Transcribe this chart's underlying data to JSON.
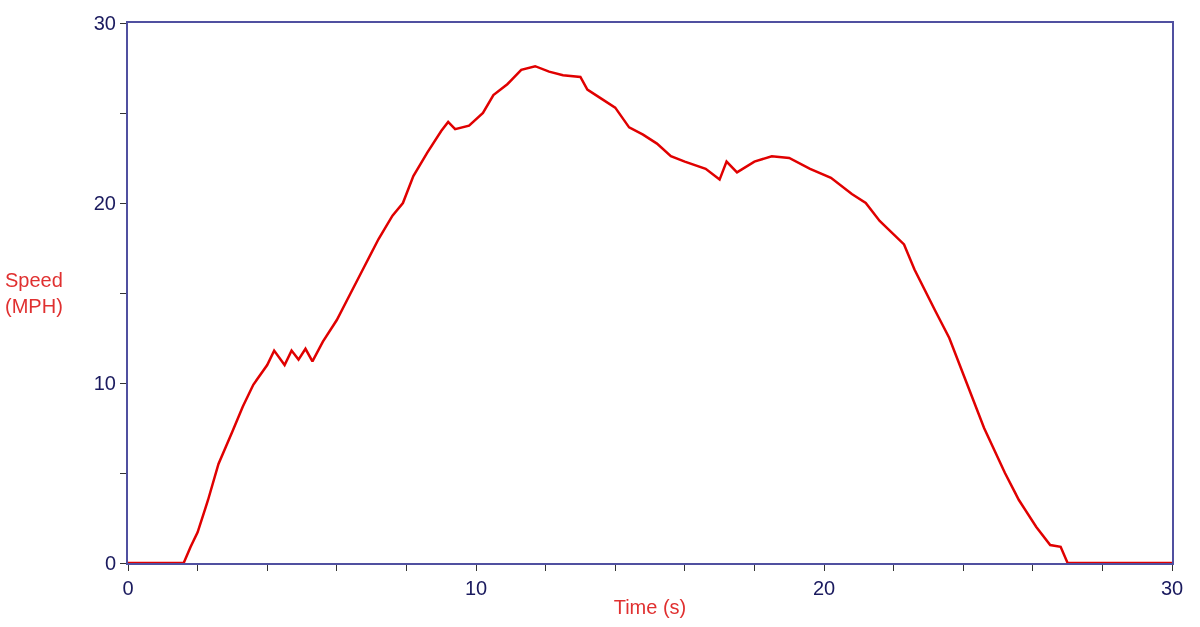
{
  "chart_data": {
    "type": "line",
    "xlabel": "Time (s)",
    "ylabel": "Speed\n(MPH)",
    "x": [
      0,
      1.6,
      1.8,
      2.0,
      2.3,
      2.6,
      3.0,
      3.3,
      3.6,
      4.0,
      4.2,
      4.5,
      4.7,
      4.9,
      5.1,
      5.3,
      5.6,
      6.0,
      6.4,
      6.8,
      7.2,
      7.6,
      7.9,
      8.2,
      8.6,
      9.0,
      9.2,
      9.4,
      9.8,
      10.2,
      10.5,
      10.9,
      11.3,
      11.7,
      12.1,
      12.5,
      13.0,
      13.2,
      13.6,
      14.0,
      14.4,
      14.8,
      15.2,
      15.6,
      16.0,
      16.6,
      17.0,
      17.2,
      17.5,
      18.0,
      18.5,
      19.0,
      19.6,
      20.2,
      20.8,
      21.2,
      21.6,
      22.3,
      22.6,
      23.2,
      23.6,
      24.1,
      24.6,
      25.2,
      25.6,
      26.1,
      26.5,
      26.8,
      27.0,
      30
    ],
    "series": [
      {
        "color": "#e00000",
        "values": [
          0,
          0,
          0.9,
          1.7,
          3.5,
          5.5,
          7.3,
          8.7,
          9.9,
          11.0,
          11.8,
          11.0,
          11.8,
          11.3,
          11.9,
          11.2,
          12.3,
          13.5,
          15.0,
          16.5,
          18.0,
          19.3,
          20.0,
          21.5,
          22.8,
          24.0,
          24.5,
          24.1,
          24.3,
          25.0,
          26.0,
          26.6,
          27.4,
          27.6,
          27.3,
          27.1,
          27.0,
          26.3,
          25.8,
          25.3,
          24.2,
          23.8,
          23.3,
          22.6,
          22.3,
          21.9,
          21.3,
          22.3,
          21.7,
          22.3,
          22.6,
          22.5,
          21.9,
          21.4,
          20.5,
          20.0,
          19.0,
          17.7,
          16.3,
          14.0,
          12.5,
          10.0,
          7.5,
          5.0,
          3.5,
          2.0,
          1.0,
          0.9,
          0,
          0
        ]
      }
    ],
    "xlim": [
      0,
      30
    ],
    "ylim": [
      0,
      30
    ],
    "xticks": [
      0,
      {
        "value": 2,
        "label": null
      },
      {
        "value": 4,
        "label": null
      },
      {
        "value": 6,
        "label": null
      },
      {
        "value": 8,
        "label": null
      },
      10,
      {
        "value": 12,
        "label": null
      },
      {
        "value": 14,
        "label": null
      },
      {
        "value": 16,
        "label": null
      },
      {
        "value": 18,
        "label": null
      },
      20,
      {
        "value": 22,
        "label": null
      },
      {
        "value": 24,
        "label": null
      },
      {
        "value": 26,
        "label": null
      },
      {
        "value": 28,
        "label": null
      },
      30
    ],
    "yticks": [
      0,
      {
        "value": 5,
        "label": null
      },
      10,
      {
        "value": 15,
        "label": null
      },
      20,
      {
        "value": 25,
        "label": null
      },
      30
    ],
    "marker": "none",
    "line_style": "solid"
  }
}
